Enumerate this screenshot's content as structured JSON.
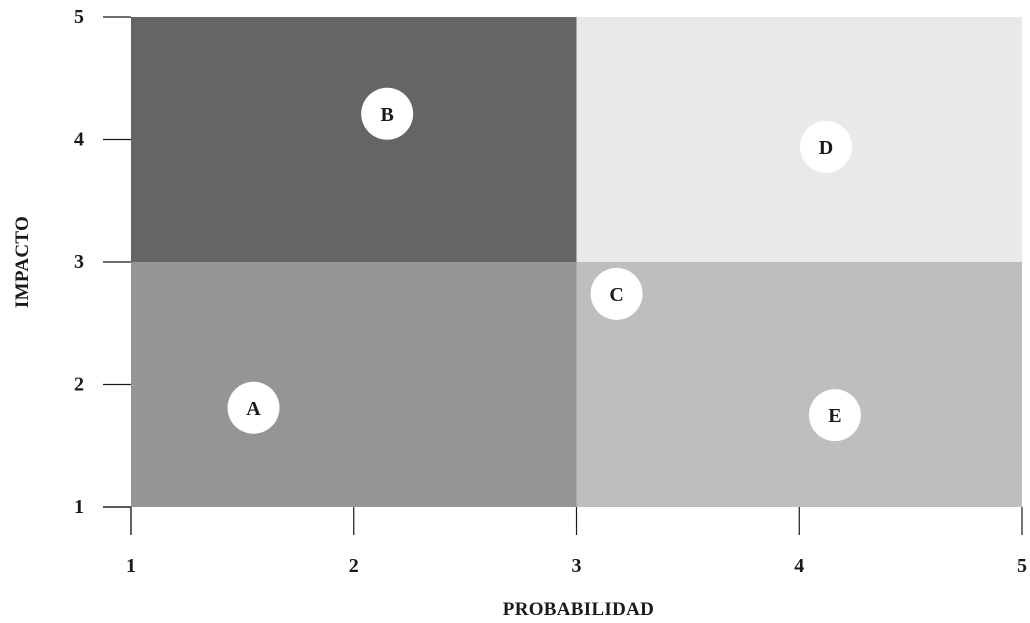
{
  "chart_data": {
    "type": "scatter",
    "title": "",
    "xlabel": "PROBABILIDAD",
    "ylabel": "IMPACTO",
    "xlim": [
      1,
      5
    ],
    "ylim": [
      1,
      5
    ],
    "xticks": [
      "1",
      "2",
      "3",
      "4",
      "5"
    ],
    "yticks": [
      "1",
      "2",
      "3",
      "4",
      "5"
    ],
    "grid": false,
    "regions": [
      {
        "x": [
          1,
          3
        ],
        "y": [
          3,
          5
        ],
        "color": "#666467"
      },
      {
        "x": [
          3,
          5
        ],
        "y": [
          3,
          5
        ],
        "color": "#e9e9e9"
      },
      {
        "x": [
          1,
          3
        ],
        "y": [
          1,
          3
        ],
        "color": "#959496"
      },
      {
        "x": [
          3,
          5
        ],
        "y": [
          1,
          3
        ],
        "color": "#bebebf"
      }
    ],
    "points": [
      {
        "label": "A",
        "x": 1.55,
        "y": 1.81
      },
      {
        "label": "B",
        "x": 2.15,
        "y": 4.21
      },
      {
        "label": "C",
        "x": 3.18,
        "y": 2.74
      },
      {
        "label": "D",
        "x": 4.12,
        "y": 3.94
      },
      {
        "label": "E",
        "x": 4.16,
        "y": 1.75
      }
    ],
    "marker_color": "#ffffff",
    "axis_color": "#1a1a1a"
  }
}
